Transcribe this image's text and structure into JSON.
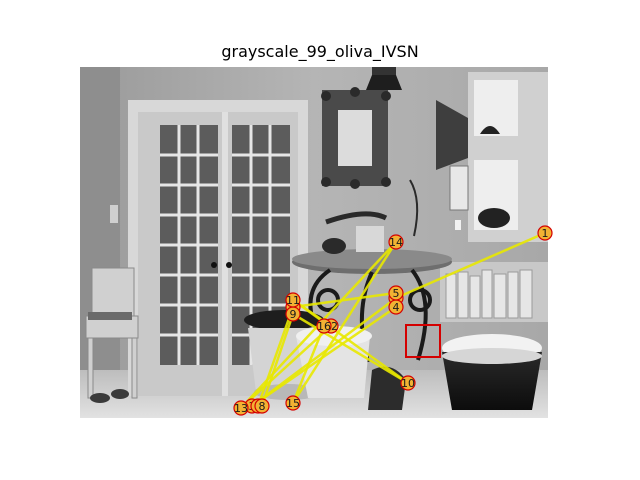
{
  "figure": {
    "title": "grayscale_99_oliva_IVSN"
  },
  "scanpath": {
    "line_color": "#e8e800",
    "marker_fill": "#f2b233",
    "marker_edge": "#d40000",
    "target_box_color": "#d40000",
    "fixations": [
      {
        "label": "1"
      },
      {
        "label": "2"
      },
      {
        "label": "3"
      },
      {
        "label": "4"
      },
      {
        "label": "5"
      },
      {
        "label": "6"
      },
      {
        "label": "7"
      },
      {
        "label": "8"
      },
      {
        "label": "9"
      },
      {
        "label": "10"
      },
      {
        "label": "11"
      },
      {
        "label": "12"
      },
      {
        "label": "13"
      },
      {
        "label": "14"
      },
      {
        "label": "15"
      },
      {
        "label": "16"
      }
    ]
  }
}
